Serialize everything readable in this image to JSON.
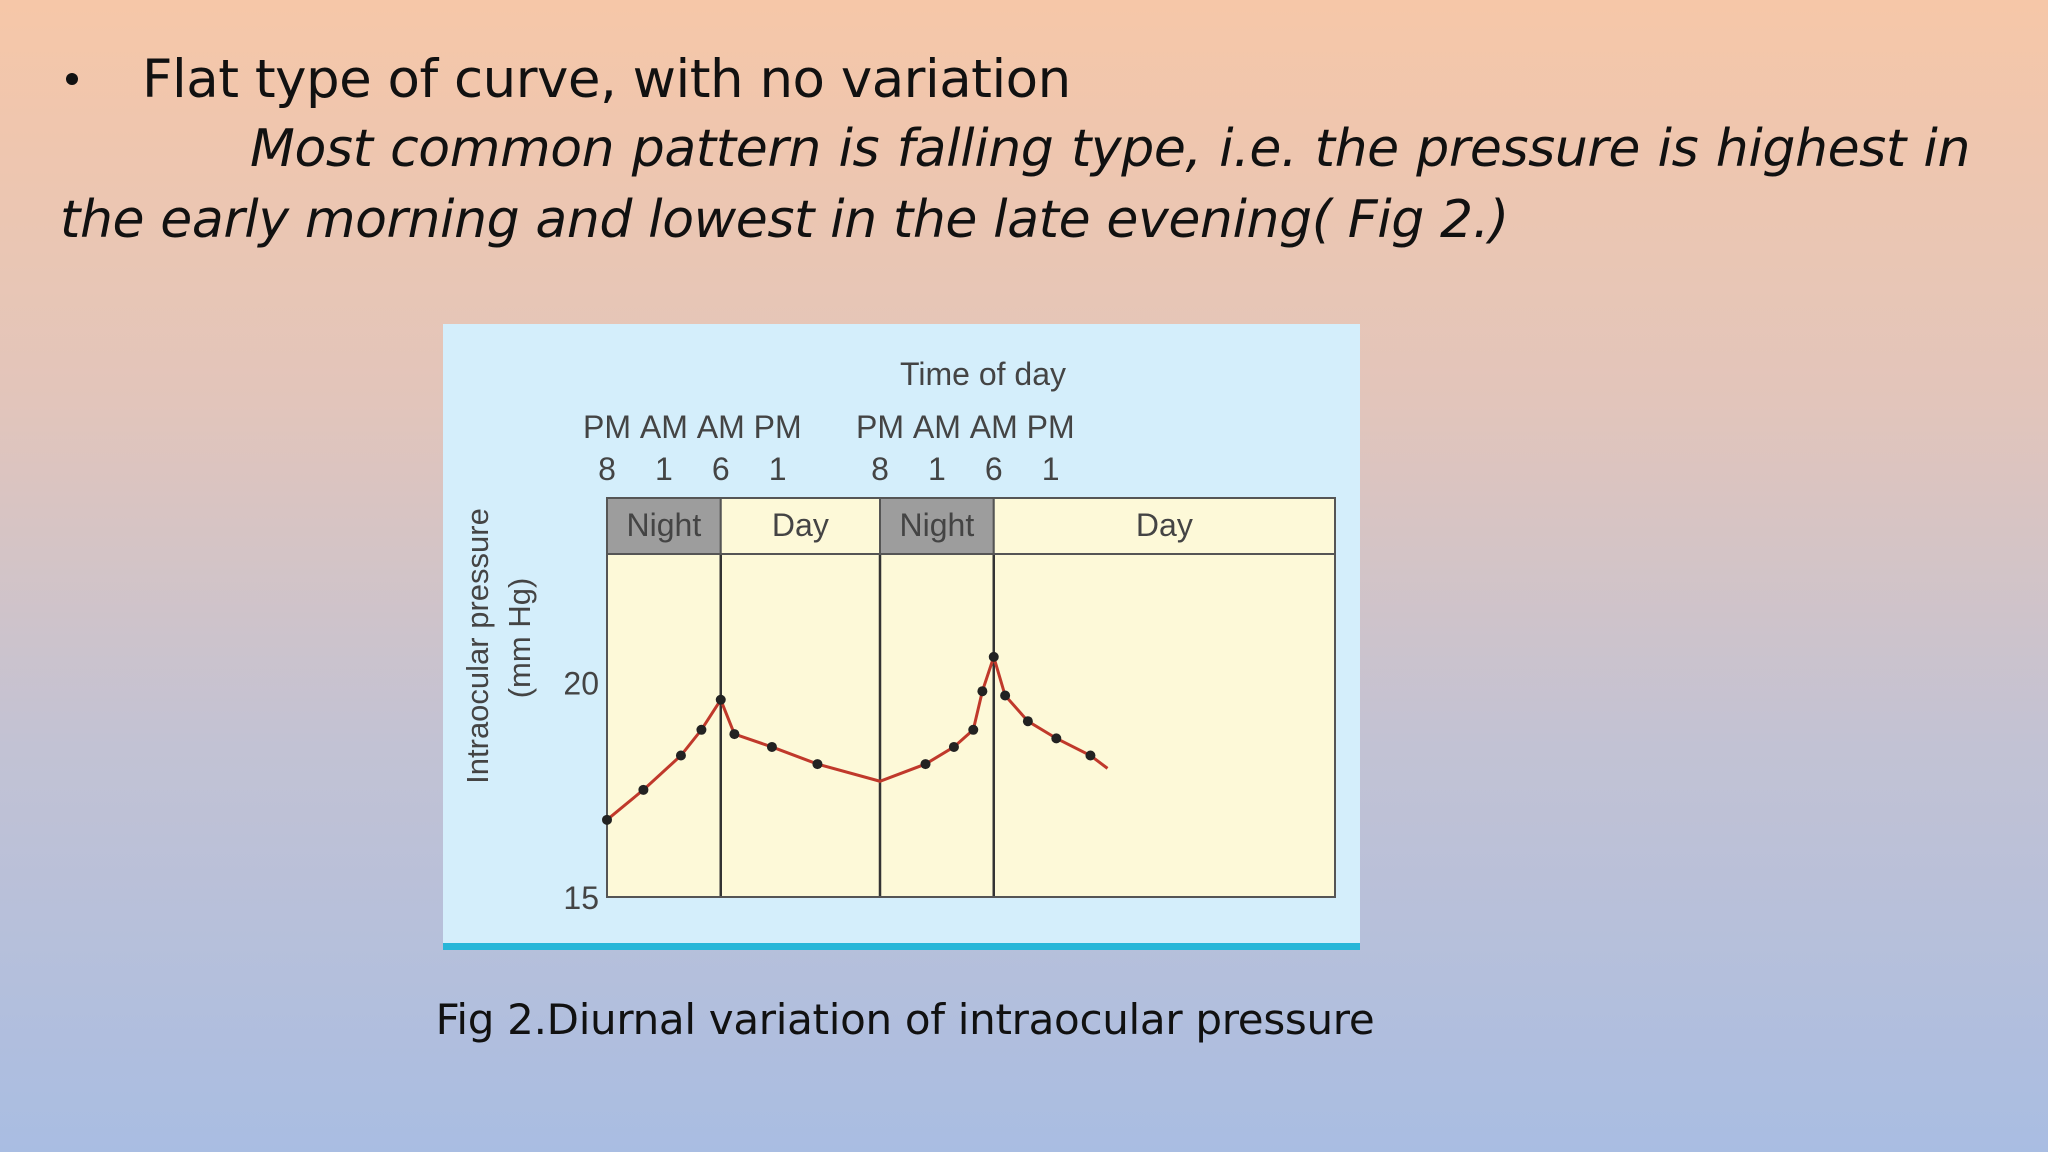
{
  "slide": {
    "bullet_text": "Flat type of curve, with no variation",
    "paragraph": "Most common pattern is falling type, i.e. the pressure is highest in the early morning and lowest in the late evening( Fig 2.)",
    "caption": "Fig 2.Diurnal variation of intraocular pressure"
  },
  "chart_data": {
    "type": "line",
    "title": "Time of day",
    "ylabel": "Intraocular pressure (mm Hg)",
    "xlabel": "",
    "ylim": [
      15,
      23
    ],
    "xlim": [
      0,
      64
    ],
    "y_ticks": [
      15,
      20
    ],
    "x_ticks": [
      {
        "x": 0,
        "top": "PM",
        "bottom": "8"
      },
      {
        "x": 5,
        "top": "AM",
        "bottom": "1"
      },
      {
        "x": 10,
        "top": "AM",
        "bottom": "6"
      },
      {
        "x": 15,
        "top": "PM",
        "bottom": "1"
      },
      {
        "x": 24,
        "top": "PM",
        "bottom": "8"
      },
      {
        "x": 29,
        "top": "AM",
        "bottom": "1"
      },
      {
        "x": 34,
        "top": "AM",
        "bottom": "6"
      },
      {
        "x": 39,
        "top": "PM",
        "bottom": "1"
      }
    ],
    "periods": [
      {
        "label": "Night",
        "start": 0,
        "end": 10,
        "shade": "#9d9d9d"
      },
      {
        "label": "Day",
        "start": 10,
        "end": 24,
        "shade": "#fdf9d8"
      },
      {
        "label": "Night",
        "start": 24,
        "end": 34,
        "shade": "#9d9d9d"
      },
      {
        "label": "Day",
        "start": 34,
        "end": 64,
        "shade": "#fdf9d8"
      }
    ],
    "series": [
      {
        "color": "#c0392b",
        "x": [
          0,
          3.2,
          6.5,
          8.3,
          10,
          11.2,
          14.5,
          18.5,
          24,
          28,
          30.5,
          32.2,
          33,
          34,
          35,
          37,
          39.5,
          42.5,
          44
        ],
        "y": [
          16.8,
          17.5,
          18.3,
          18.9,
          19.6,
          18.8,
          18.5,
          18.1,
          17.7,
          18.1,
          18.5,
          18.9,
          19.8,
          20.6,
          19.7,
          19.1,
          18.7,
          18.3,
          18.0
        ]
      }
    ],
    "point_x": [
      0,
      3.2,
      6.5,
      8.3,
      10,
      11.2,
      14.5,
      18.5,
      28,
      30.5,
      32.2,
      33,
      34,
      35,
      37,
      39.5,
      42.5
    ],
    "grid": false,
    "background": "#fdf9d8",
    "panel_background": "#d4eefb"
  }
}
